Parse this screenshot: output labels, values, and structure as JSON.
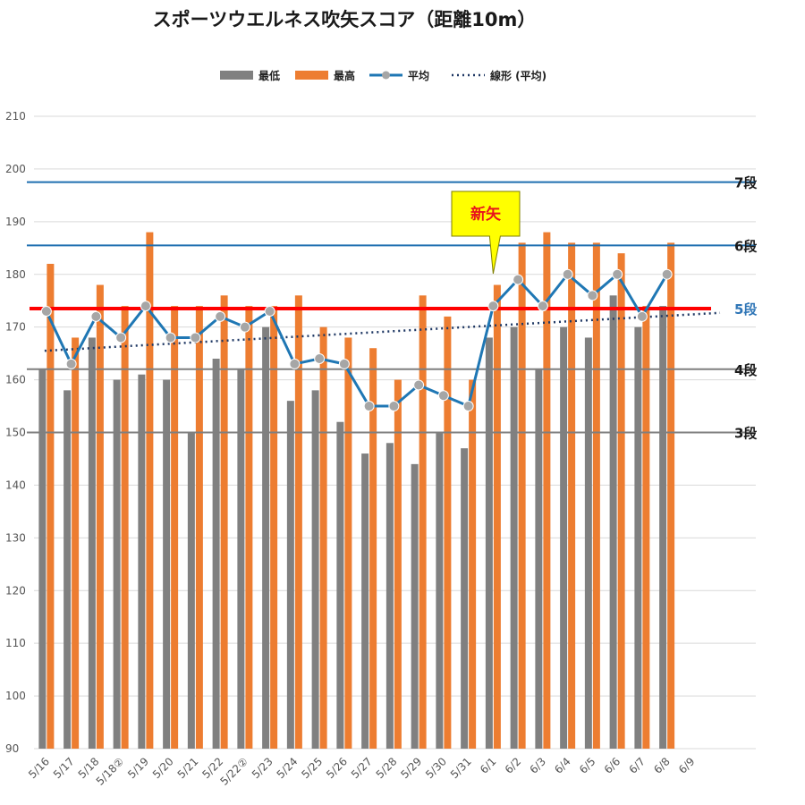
{
  "title": "スポーツウエルネス吹矢スコア（距離10m）",
  "colors": {
    "min_bar": "#808080",
    "max_bar": "#ed7d31",
    "avg_line": "#1f77b4",
    "avg_marker": "#a6a6a6",
    "trend": "#1f3864",
    "grid": "#d9d9d9",
    "red_line": "#ff0000"
  },
  "chart_data": {
    "type": "bar",
    "categories": [
      "5/16",
      "5/17",
      "5/18",
      "5/18②",
      "5/19",
      "5/20",
      "5/21",
      "5/22",
      "5/22②",
      "5/23",
      "5/24",
      "5/25",
      "5/26",
      "5/27",
      "5/28",
      "5/29",
      "5/30",
      "5/31",
      "6/1",
      "6/2",
      "6/3",
      "6/4",
      "6/5",
      "6/6",
      "6/7",
      "6/8",
      "6/9"
    ],
    "series": [
      {
        "name": "最低",
        "type": "bar",
        "color": "#808080",
        "values": [
          162,
          158,
          168,
          160,
          161,
          160,
          150,
          164,
          162,
          170,
          156,
          158,
          152,
          146,
          148,
          144,
          150,
          147,
          168,
          170,
          162,
          170,
          168,
          176,
          170,
          174,
          null
        ]
      },
      {
        "name": "最高",
        "type": "bar",
        "color": "#ed7d31",
        "values": [
          182,
          168,
          178,
          174,
          188,
          174,
          174,
          176,
          174,
          174,
          176,
          170,
          168,
          166,
          160,
          176,
          172,
          160,
          178,
          186,
          188,
          186,
          186,
          184,
          174,
          186,
          null
        ]
      },
      {
        "name": "平均",
        "type": "line",
        "color": "#1f77b4",
        "values": [
          173,
          163,
          172,
          168,
          174,
          168,
          168,
          172,
          170,
          173,
          163,
          164,
          163,
          155,
          155,
          159,
          157,
          155,
          174,
          179,
          174,
          180,
          176,
          180,
          172,
          180,
          null
        ]
      },
      {
        "name": "線形 (平均)",
        "type": "trend",
        "color": "#1f3864",
        "start": 165.5,
        "end": 172.7
      }
    ],
    "ylim": [
      90,
      210
    ],
    "yticks": [
      90,
      100,
      110,
      120,
      130,
      140,
      150,
      160,
      170,
      180,
      190,
      200,
      210
    ],
    "legend_position": "top",
    "grid": true,
    "reference_lines": [
      {
        "label": "7段",
        "value": 197.5,
        "color": "#1f6fb0",
        "label_color": "#1a1a1a"
      },
      {
        "label": "6段",
        "value": 185.5,
        "color": "#1f6fb0",
        "label_color": "#1a1a1a"
      },
      {
        "label": "5段",
        "value": 173.5,
        "color": "#ff0000",
        "label_color": "#2e75b6"
      },
      {
        "label": "4段",
        "value": 162,
        "color": "#7f7f7f",
        "label_color": "#1a1a1a"
      },
      {
        "label": "3段",
        "value": 150,
        "color": "#7f7f7f",
        "label_color": "#1a1a1a"
      }
    ],
    "annotation": {
      "text": "新矢",
      "category": "6/1"
    }
  }
}
